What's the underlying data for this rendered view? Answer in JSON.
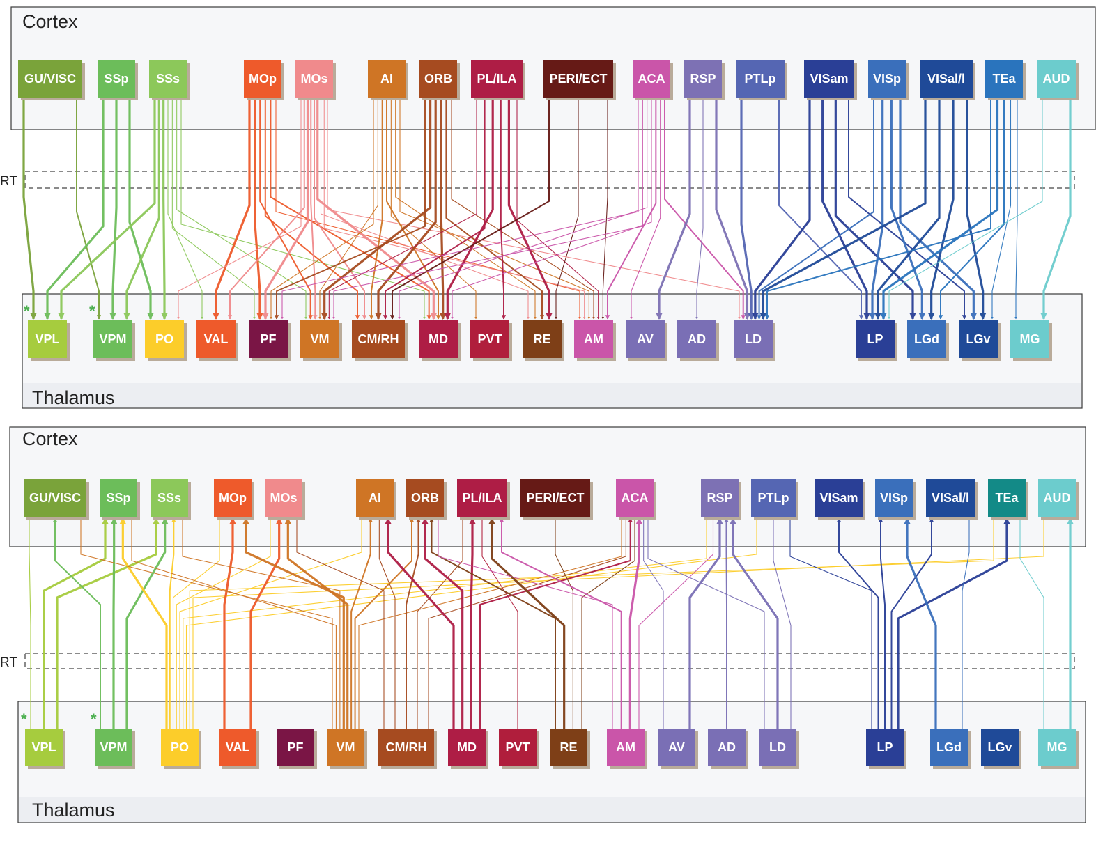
{
  "panels": [
    {
      "id": "top",
      "cortex_label": "Cortex",
      "thalamus_label": "Thalamus",
      "rt_label": "RT",
      "direction": "down",
      "cortex_nodes": [
        {
          "id": "GU/VISC",
          "label": "GU/VISC",
          "color": "#7aa33a"
        },
        {
          "id": "SSp",
          "label": "SSp",
          "color": "#6cbd5a"
        },
        {
          "id": "SSs",
          "label": "SSs",
          "color": "#8cc85a"
        },
        {
          "id": "MOp",
          "label": "MOp",
          "color": "#ee5a2b"
        },
        {
          "id": "MOs",
          "label": "MOs",
          "color": "#f08a8c"
        },
        {
          "id": "AI",
          "label": "AI",
          "color": "#cf7525"
        },
        {
          "id": "ORB",
          "label": "ORB",
          "color": "#a64b20"
        },
        {
          "id": "PL/ILA",
          "label": "PL/ILA",
          "color": "#ae1d45"
        },
        {
          "id": "PERI/ECT",
          "label": "PERI/ECT",
          "color": "#661a16"
        },
        {
          "id": "ACA",
          "label": "ACA",
          "color": "#ca55a9"
        },
        {
          "id": "RSP",
          "label": "RSP",
          "color": "#7d71b4"
        },
        {
          "id": "PTLp",
          "label": "PTLp",
          "color": "#5566b3"
        },
        {
          "id": "VISam",
          "label": "VISam",
          "color": "#2a3f96"
        },
        {
          "id": "VISp",
          "label": "VISp",
          "color": "#3a6fbb"
        },
        {
          "id": "VISal/l",
          "label": "VISal/l",
          "color": "#1f4a98"
        },
        {
          "id": "TEa",
          "label": "TEa",
          "color": "#2a74bd"
        },
        {
          "id": "AUD",
          "label": "AUD",
          "color": "#6ccccd"
        }
      ],
      "thalamus_nodes": [
        {
          "id": "VPL",
          "label": "VPL",
          "color": "#a6cc3e",
          "starred": true
        },
        {
          "id": "VPM",
          "label": "VPM",
          "color": "#6cbd5a",
          "starred": true
        },
        {
          "id": "PO",
          "label": "PO",
          "color": "#fccd2a"
        },
        {
          "id": "VAL",
          "label": "VAL",
          "color": "#ee5a2b"
        },
        {
          "id": "PF",
          "label": "PF",
          "color": "#7a1545"
        },
        {
          "id": "VM",
          "label": "VM",
          "color": "#cf7525"
        },
        {
          "id": "CM/RH",
          "label": "CM/RH",
          "color": "#a64b20"
        },
        {
          "id": "MD",
          "label": "MD",
          "color": "#ae1d45"
        },
        {
          "id": "PVT",
          "label": "PVT",
          "color": "#b01e3c"
        },
        {
          "id": "RE",
          "label": "RE",
          "color": "#7e3f17"
        },
        {
          "id": "AM",
          "label": "AM",
          "color": "#ca55a9"
        },
        {
          "id": "AV",
          "label": "AV",
          "color": "#7a6fb5"
        },
        {
          "id": "AD",
          "label": "AD",
          "color": "#7a6fb5"
        },
        {
          "id": "LD",
          "label": "LD",
          "color": "#7a6fb5"
        },
        {
          "id": "LP",
          "label": "LP",
          "color": "#2a3f96"
        },
        {
          "id": "LGd",
          "label": "LGd",
          "color": "#3a6fbb"
        },
        {
          "id": "LGv",
          "label": "LGv",
          "color": "#1f4a98"
        },
        {
          "id": "MG",
          "label": "MG",
          "color": "#6ccccd"
        }
      ],
      "connections": [
        [
          "GU/VISC",
          "VPL",
          3
        ],
        [
          "GU/VISC",
          "VPM",
          2
        ],
        [
          "SSp",
          "VPL",
          3
        ],
        [
          "SSp",
          "VPM",
          3
        ],
        [
          "SSp",
          "PO",
          3
        ],
        [
          "SSs",
          "VPL",
          3
        ],
        [
          "SSs",
          "VPM",
          3
        ],
        [
          "SSs",
          "PO",
          3
        ],
        [
          "SSs",
          "VAL",
          1
        ],
        [
          "SSs",
          "PF",
          1
        ],
        [
          "SSs",
          "VM",
          1
        ],
        [
          "SSs",
          "MD",
          1
        ],
        [
          "MOp",
          "VAL",
          3
        ],
        [
          "MOp",
          "PF",
          3
        ],
        [
          "MOp",
          "VM",
          2
        ],
        [
          "MOp",
          "CM/RH",
          2
        ],
        [
          "MOp",
          "MD",
          2
        ],
        [
          "MOp",
          "AM",
          1
        ],
        [
          "MOs",
          "PO",
          1
        ],
        [
          "MOs",
          "VAL",
          2
        ],
        [
          "MOs",
          "PF",
          3
        ],
        [
          "MOs",
          "VM",
          2
        ],
        [
          "MOs",
          "CM/RH",
          2
        ],
        [
          "MOs",
          "MD",
          3
        ],
        [
          "MOs",
          "RE",
          1
        ],
        [
          "MOs",
          "AM",
          1
        ],
        [
          "MOs",
          "LD",
          1
        ],
        [
          "AI",
          "PF",
          1
        ],
        [
          "AI",
          "VM",
          1
        ],
        [
          "AI",
          "CM/RH",
          2
        ],
        [
          "AI",
          "MD",
          2
        ],
        [
          "AI",
          "PVT",
          1
        ],
        [
          "AI",
          "RE",
          1
        ],
        [
          "AI",
          "AM",
          1
        ],
        [
          "ORB",
          "PF",
          2
        ],
        [
          "ORB",
          "VM",
          3
        ],
        [
          "ORB",
          "CM/RH",
          3
        ],
        [
          "ORB",
          "MD",
          3
        ],
        [
          "ORB",
          "RE",
          2
        ],
        [
          "ORB",
          "AM",
          1
        ],
        [
          "PL/ILA",
          "VM",
          1
        ],
        [
          "PL/ILA",
          "CM/RH",
          2
        ],
        [
          "PL/ILA",
          "MD",
          3
        ],
        [
          "PL/ILA",
          "PVT",
          2
        ],
        [
          "PL/ILA",
          "RE",
          3
        ],
        [
          "PL/ILA",
          "AM",
          1
        ],
        [
          "PERI/ECT",
          "CM/RH",
          2
        ],
        [
          "PERI/ECT",
          "RE",
          1
        ],
        [
          "PERI/ECT",
          "AM",
          1
        ],
        [
          "ACA",
          "PF",
          1
        ],
        [
          "ACA",
          "VM",
          1
        ],
        [
          "ACA",
          "CM/RH",
          1
        ],
        [
          "ACA",
          "MD",
          1
        ],
        [
          "ACA",
          "AM",
          2
        ],
        [
          "ACA",
          "AV",
          1
        ],
        [
          "ACA",
          "LD",
          2
        ],
        [
          "RSP",
          "AV",
          3
        ],
        [
          "RSP",
          "AD",
          1
        ],
        [
          "RSP",
          "LD",
          3
        ],
        [
          "PTLp",
          "LD",
          3
        ],
        [
          "PTLp",
          "LP",
          2
        ],
        [
          "VISam",
          "LD",
          3
        ],
        [
          "VISam",
          "LP",
          3
        ],
        [
          "VISam",
          "LGd",
          3
        ],
        [
          "VISam",
          "LGv",
          2
        ],
        [
          "VISp",
          "LD",
          2
        ],
        [
          "VISp",
          "LP",
          3
        ],
        [
          "VISp",
          "LGd",
          3
        ],
        [
          "VISp",
          "LGv",
          3
        ],
        [
          "VISal/l",
          "LD",
          3
        ],
        [
          "VISal/l",
          "LP",
          3
        ],
        [
          "VISal/l",
          "LGd",
          3
        ],
        [
          "VISal/l",
          "LGv",
          3
        ],
        [
          "TEa",
          "LD",
          2
        ],
        [
          "TEa",
          "LP",
          3
        ],
        [
          "TEa",
          "LGd",
          2
        ],
        [
          "TEa",
          "LGv",
          1
        ],
        [
          "TEa",
          "MG",
          1
        ],
        [
          "AUD",
          "LP",
          1
        ],
        [
          "AUD",
          "MG",
          3
        ]
      ]
    },
    {
      "id": "bottom",
      "cortex_label": "Cortex",
      "thalamus_label": "Thalamus",
      "rt_label": "RT",
      "direction": "up",
      "cortex_nodes": [
        {
          "id": "GU/VISC",
          "label": "GU/VISC",
          "color": "#7aa33a"
        },
        {
          "id": "SSp",
          "label": "SSp",
          "color": "#6cbd5a"
        },
        {
          "id": "SSs",
          "label": "SSs",
          "color": "#8cc85a"
        },
        {
          "id": "MOp",
          "label": "MOp",
          "color": "#ee5a2b"
        },
        {
          "id": "MOs",
          "label": "MOs",
          "color": "#f08a8c"
        },
        {
          "id": "AI",
          "label": "AI",
          "color": "#cf7525"
        },
        {
          "id": "ORB",
          "label": "ORB",
          "color": "#a64b20"
        },
        {
          "id": "PL/ILA",
          "label": "PL/ILA",
          "color": "#ae1d45"
        },
        {
          "id": "PERI/ECT",
          "label": "PERI/ECT",
          "color": "#661a16"
        },
        {
          "id": "ACA",
          "label": "ACA",
          "color": "#ca55a9"
        },
        {
          "id": "RSP",
          "label": "RSP",
          "color": "#7d71b4"
        },
        {
          "id": "PTLp",
          "label": "PTLp",
          "color": "#5566b3"
        },
        {
          "id": "VISam",
          "label": "VISam",
          "color": "#2a3f96"
        },
        {
          "id": "VISp",
          "label": "VISp",
          "color": "#3a6fbb"
        },
        {
          "id": "VISal/l",
          "label": "VISal/l",
          "color": "#1f4a98"
        },
        {
          "id": "TEa",
          "label": "TEa",
          "color": "#138a87"
        },
        {
          "id": "AUD",
          "label": "AUD",
          "color": "#6ccccd"
        }
      ],
      "thalamus_nodes": [
        {
          "id": "VPL",
          "label": "VPL",
          "color": "#a6cc3e",
          "starred": true
        },
        {
          "id": "VPM",
          "label": "VPM",
          "color": "#6cbd5a",
          "starred": true
        },
        {
          "id": "PO",
          "label": "PO",
          "color": "#fccd2a"
        },
        {
          "id": "VAL",
          "label": "VAL",
          "color": "#ee5a2b"
        },
        {
          "id": "PF",
          "label": "PF",
          "color": "#7a1545"
        },
        {
          "id": "VM",
          "label": "VM",
          "color": "#cf7525"
        },
        {
          "id": "CM/RH",
          "label": "CM/RH",
          "color": "#a64b20"
        },
        {
          "id": "MD",
          "label": "MD",
          "color": "#ae1d45"
        },
        {
          "id": "PVT",
          "label": "PVT",
          "color": "#b01e3c"
        },
        {
          "id": "RE",
          "label": "RE",
          "color": "#7e3f17"
        },
        {
          "id": "AM",
          "label": "AM",
          "color": "#ca55a9"
        },
        {
          "id": "AV",
          "label": "AV",
          "color": "#7a6fb5"
        },
        {
          "id": "AD",
          "label": "AD",
          "color": "#7a6fb5"
        },
        {
          "id": "LD",
          "label": "LD",
          "color": "#7a6fb5"
        },
        {
          "id": "LP",
          "label": "LP",
          "color": "#2a3f96"
        },
        {
          "id": "LGd",
          "label": "LGd",
          "color": "#3a6fbb"
        },
        {
          "id": "LGv",
          "label": "LGv",
          "color": "#1f4a98"
        },
        {
          "id": "MG",
          "label": "MG",
          "color": "#6ccccd"
        }
      ],
      "connections": [
        [
          "VPL",
          "GU/VISC",
          1
        ],
        [
          "VPL",
          "SSp",
          3
        ],
        [
          "VPL",
          "SSs",
          3
        ],
        [
          "VPM",
          "GU/VISC",
          2
        ],
        [
          "VPM",
          "SSp",
          3
        ],
        [
          "VPM",
          "SSs",
          3
        ],
        [
          "PO",
          "SSp",
          3
        ],
        [
          "PO",
          "SSs",
          2
        ],
        [
          "PO",
          "MOp",
          1
        ],
        [
          "PO",
          "MOs",
          1
        ],
        [
          "PO",
          "AI",
          1
        ],
        [
          "PO",
          "RSP",
          1
        ],
        [
          "PO",
          "PTLp",
          1
        ],
        [
          "PO",
          "TEa",
          1
        ],
        [
          "PO",
          "AUD",
          1
        ],
        [
          "VAL",
          "MOp",
          3
        ],
        [
          "VAL",
          "MOs",
          3
        ],
        [
          "VM",
          "GU/VISC",
          1
        ],
        [
          "VM",
          "SSp",
          1
        ],
        [
          "VM",
          "SSs",
          1
        ],
        [
          "VM",
          "MOp",
          3
        ],
        [
          "VM",
          "MOs",
          3
        ],
        [
          "VM",
          "AI",
          2
        ],
        [
          "VM",
          "ORB",
          2
        ],
        [
          "VM",
          "ACA",
          1
        ],
        [
          "CM/RH",
          "MOs",
          1
        ],
        [
          "CM/RH",
          "AI",
          1
        ],
        [
          "CM/RH",
          "ORB",
          2
        ],
        [
          "CM/RH",
          "PL/ILA",
          1
        ],
        [
          "CM/RH",
          "ACA",
          1
        ],
        [
          "MD",
          "AI",
          3
        ],
        [
          "MD",
          "ORB",
          3
        ],
        [
          "MD",
          "PL/ILA",
          3
        ],
        [
          "MD",
          "ACA",
          2
        ],
        [
          "PVT",
          "PL/ILA",
          1
        ],
        [
          "RE",
          "ORB",
          2
        ],
        [
          "RE",
          "PL/ILA",
          3
        ],
        [
          "RE",
          "PERI/ECT",
          1
        ],
        [
          "RE",
          "ACA",
          1
        ],
        [
          "AM",
          "ORB",
          1
        ],
        [
          "AM",
          "PL/ILA",
          2
        ],
        [
          "AM",
          "ACA",
          3
        ],
        [
          "AM",
          "RSP",
          1
        ],
        [
          "AV",
          "ACA",
          1
        ],
        [
          "AV",
          "RSP",
          3
        ],
        [
          "AD",
          "RSP",
          2
        ],
        [
          "LD",
          "ACA",
          1
        ],
        [
          "LD",
          "RSP",
          3
        ],
        [
          "LD",
          "PTLp",
          1
        ],
        [
          "LP",
          "PTLp",
          1
        ],
        [
          "LP",
          "VISam",
          2
        ],
        [
          "LP",
          "VISp",
          2
        ],
        [
          "LP",
          "VISal/l",
          2
        ],
        [
          "LP",
          "TEa",
          3
        ],
        [
          "LGd",
          "VISp",
          3
        ],
        [
          "LGd",
          "VISal/l",
          1
        ],
        [
          "MG",
          "TEa",
          1
        ],
        [
          "MG",
          "AUD",
          3
        ]
      ]
    }
  ]
}
